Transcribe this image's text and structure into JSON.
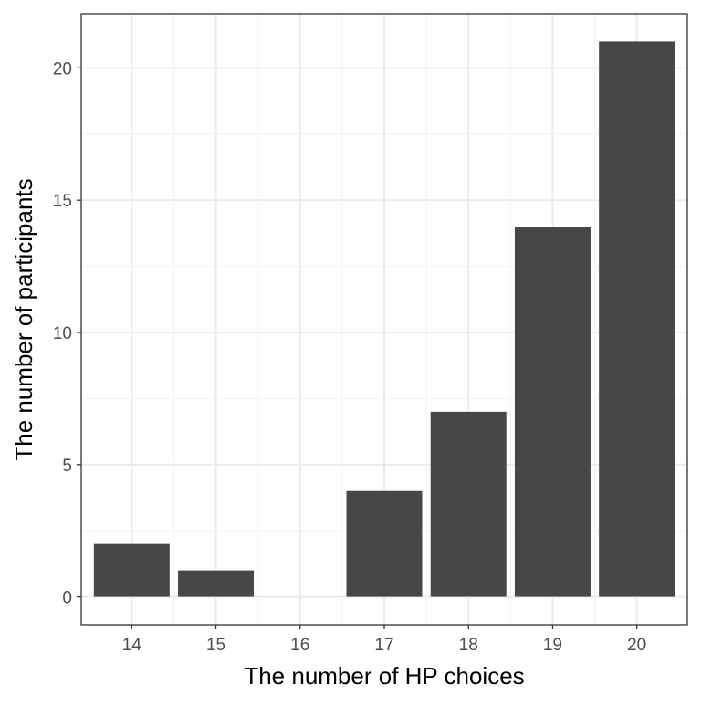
{
  "chart_data": {
    "type": "bar",
    "categories": [
      "14",
      "15",
      "16",
      "17",
      "18",
      "19",
      "20"
    ],
    "values": [
      2,
      1,
      0,
      4,
      7,
      14,
      21
    ],
    "title": "",
    "xlabel": "The number of HP choices",
    "ylabel": "The number of participants",
    "ylim": [
      -1.05,
      22.05
    ],
    "yticks": [
      "0",
      "5",
      "10",
      "15",
      "20"
    ],
    "grid": true,
    "legend": "none",
    "colors": {
      "bar": "#474747",
      "panel_border": "#333333",
      "grid_major": "#ebebeb",
      "grid_minor": "#f3f3f3",
      "tick_text": "#4d4d4d",
      "axis_title": "#000000"
    }
  }
}
